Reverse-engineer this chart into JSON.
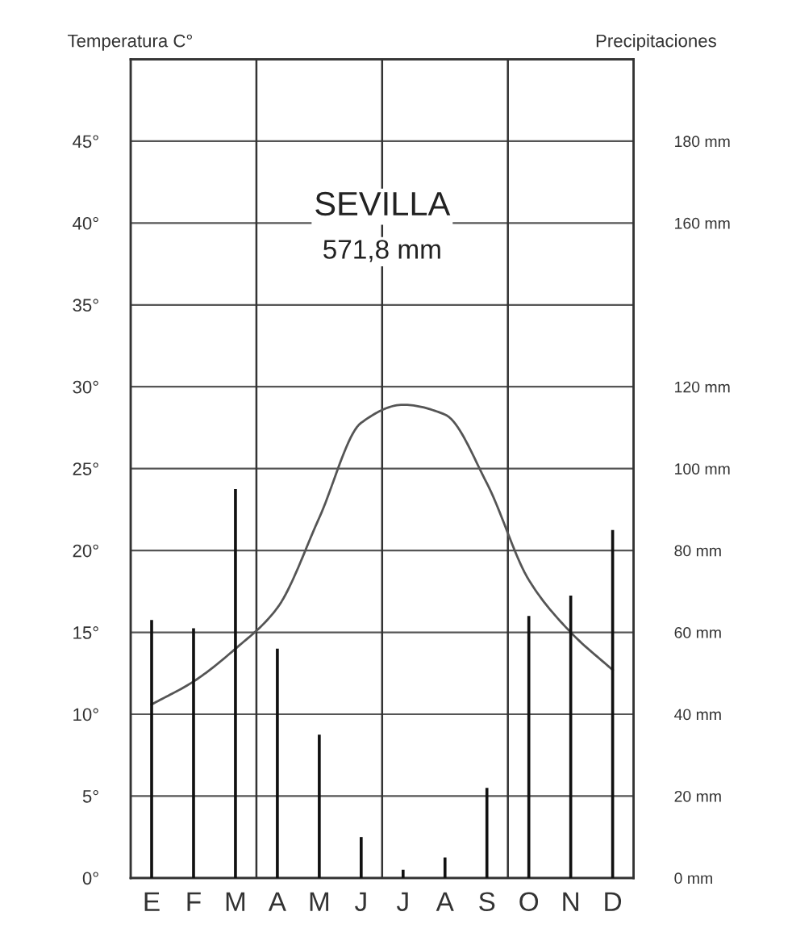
{
  "chart_data": {
    "type": "bar",
    "title": "SEVILLA",
    "annotations": [
      "571,8 mm"
    ],
    "ylabel": "Temperatura C°",
    "y2label": "Precipitaciones",
    "categories": [
      "E",
      "F",
      "M",
      "A",
      "M",
      "J",
      "J",
      "A",
      "S",
      "O",
      "N",
      "D"
    ],
    "series": [
      {
        "axis": "y2",
        "color": "#111111",
        "values": [
          63,
          61,
          95,
          56,
          35,
          10,
          2,
          5,
          22,
          64,
          69,
          85
        ]
      },
      {
        "type": "line",
        "axis": "y",
        "color": "#555555",
        "values": [
          10.6,
          12,
          14,
          16.5,
          22,
          27.8,
          28.9,
          28.3,
          24.1,
          18.2,
          15,
          12.7
        ]
      }
    ],
    "ylim": [
      0,
      50
    ],
    "yticks": [
      {
        "value": 0,
        "label": "0°"
      },
      {
        "value": 5,
        "label": "5°"
      },
      {
        "value": 10,
        "label": "10°"
      },
      {
        "value": 15,
        "label": "15°"
      },
      {
        "value": 20,
        "label": "20°"
      },
      {
        "value": 25,
        "label": "25°"
      },
      {
        "value": 30,
        "label": "30°"
      },
      {
        "value": 35,
        "label": "35°"
      },
      {
        "value": 40,
        "label": "40°"
      },
      {
        "value": 45,
        "label": "45°"
      }
    ],
    "y2lim": [
      0,
      200
    ],
    "y2ticks": [
      {
        "value": 0,
        "label": "0 mm"
      },
      {
        "value": 20,
        "label": "20 mm"
      },
      {
        "value": 40,
        "label": "40 mm"
      },
      {
        "value": 60,
        "label": "60 mm"
      },
      {
        "value": 80,
        "label": "80 mm"
      },
      {
        "value": 100,
        "label": "100 mm"
      },
      {
        "value": 120,
        "label": "120 mm"
      },
      {
        "value": 160,
        "label": "160 mm"
      },
      {
        "value": 180,
        "label": "180 mm"
      }
    ],
    "grid": "y",
    "legend": false,
    "marker": "none",
    "line_style": "solid"
  }
}
